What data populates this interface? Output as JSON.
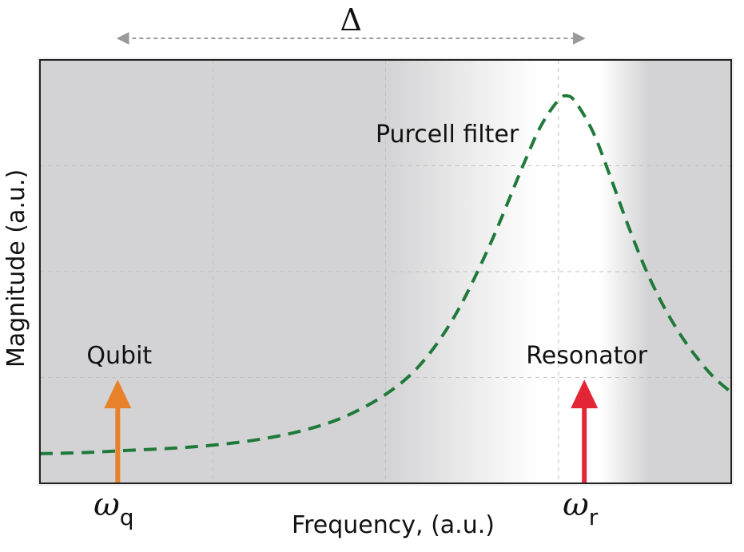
{
  "chart_data": {
    "type": "line",
    "title": "",
    "xlabel": "Frequency, (a.u.)",
    "ylabel": "Magnitude (a.u.)",
    "xlim": [
      0,
      4
    ],
    "ylim": [
      0,
      4
    ],
    "grid": true,
    "series": [
      {
        "name": "Purcell filter",
        "style": "dashed",
        "color": "#1f7a3a",
        "x": [
          0.0,
          0.25,
          0.5,
          0.75,
          1.0,
          1.25,
          1.5,
          1.75,
          2.0,
          2.2,
          2.4,
          2.6,
          2.8,
          2.9,
          3.0,
          3.05,
          3.1,
          3.2,
          3.3,
          3.4,
          3.5,
          3.6,
          3.7,
          3.8,
          3.9,
          4.0
        ],
        "y": [
          0.28,
          0.29,
          0.31,
          0.33,
          0.36,
          0.41,
          0.49,
          0.62,
          0.84,
          1.12,
          1.58,
          2.24,
          3.02,
          3.38,
          3.62,
          3.66,
          3.6,
          3.32,
          2.9,
          2.45,
          2.04,
          1.7,
          1.42,
          1.19,
          1.0,
          0.86
        ]
      }
    ],
    "markers": [
      {
        "label": "Qubit",
        "symbol_base": "ω",
        "symbol_sub": "q",
        "x": 0.45,
        "height": 0.98,
        "color": "#e8822a"
      },
      {
        "label": "Resonator",
        "symbol_base": "ω",
        "symbol_sub": "r",
        "x": 3.15,
        "height": 0.98,
        "color": "#e32636"
      }
    ],
    "annotations": [
      {
        "text": "Δ",
        "type": "double-arrow",
        "from_x": 0.45,
        "to_x": 3.15
      }
    ],
    "background": {
      "type": "gradient",
      "dark_color": "#d3d3d5",
      "light_color": "#ffffff"
    }
  }
}
